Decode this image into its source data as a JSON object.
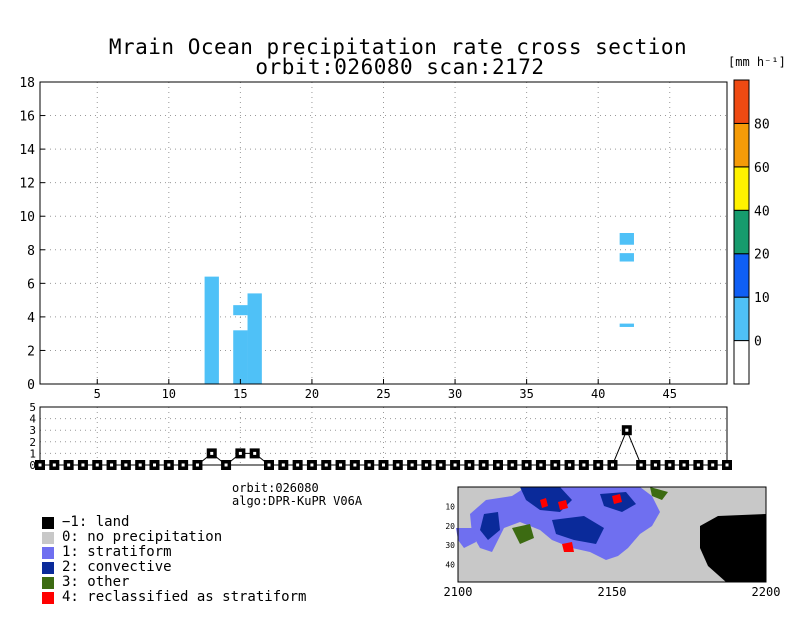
{
  "title": {
    "line1": "Mrain Ocean precipitation rate cross section",
    "line2": "orbit:026080    scan:2172"
  },
  "colorbar": {
    "unit": "[mm h⁻¹]",
    "levels": [
      0,
      10,
      20,
      40,
      60,
      80
    ],
    "colors": [
      "#ffffff",
      "#4fc1f7",
      "#0f5ff5",
      "#169b6d",
      "#fff200",
      "#f59b08",
      "#ef4a12"
    ]
  },
  "info": {
    "orbit": "orbit:026080",
    "algo": "algo:DPR-KuPR V06A"
  },
  "legend": [
    {
      "code": -1,
      "label": "−1: land",
      "color": "#000000"
    },
    {
      "code": 0,
      "label": "0: no precipitation",
      "color": "#c8c8c8"
    },
    {
      "code": 1,
      "label": "1: stratiform",
      "color": "#6f6ff0"
    },
    {
      "code": 2,
      "label": "2: convective",
      "color": "#0a2a9a"
    },
    {
      "code": 3,
      "label": "3: other",
      "color": "#3c6b12"
    },
    {
      "code": 4,
      "label": "4: reclassified as stratiform",
      "color": "#ff0000"
    }
  ],
  "chart_data": [
    {
      "type": "heatmap",
      "name": "precipitation-cross-section",
      "title": "Mrain Ocean precipitation rate cross section",
      "xlabel": "",
      "ylabel": "",
      "xlim": [
        1,
        49
      ],
      "ylim": [
        0,
        18
      ],
      "xticks": [
        5,
        10,
        15,
        20,
        25,
        30,
        35,
        40,
        45
      ],
      "yticks": [
        0,
        2,
        4,
        6,
        8,
        10,
        12,
        14,
        16,
        18
      ],
      "grid": true,
      "cells": [
        {
          "x": 13,
          "y0": 0,
          "y1": 6.4,
          "value": 5
        },
        {
          "x": 15,
          "y0": 0,
          "y1": 3.2,
          "value": 5
        },
        {
          "x": 15,
          "y0": 4.1,
          "y1": 4.7,
          "value": 5
        },
        {
          "x": 16,
          "y0": 0,
          "y1": 5.4,
          "value": 5
        },
        {
          "x": 42,
          "y0": 3.4,
          "y1": 3.6,
          "value": 5
        },
        {
          "x": 42,
          "y0": 7.3,
          "y1": 7.8,
          "value": 5
        },
        {
          "x": 42,
          "y0": 8.3,
          "y1": 9.0,
          "value": 5
        }
      ]
    },
    {
      "type": "line",
      "name": "precip-type-flag",
      "xlim": [
        1,
        49
      ],
      "ylim": [
        0,
        5
      ],
      "yticks": [
        0,
        1,
        2,
        3,
        4,
        5
      ],
      "grid": true,
      "x": [
        1,
        2,
        3,
        4,
        5,
        6,
        7,
        8,
        9,
        10,
        11,
        12,
        13,
        14,
        15,
        16,
        17,
        18,
        19,
        20,
        21,
        22,
        23,
        24,
        25,
        26,
        27,
        28,
        29,
        30,
        31,
        32,
        33,
        34,
        35,
        36,
        37,
        38,
        39,
        40,
        41,
        42,
        43,
        44,
        45,
        46,
        47,
        48,
        49
      ],
      "values": [
        0,
        0,
        0,
        0,
        0,
        0,
        0,
        0,
        0,
        0,
        0,
        0,
        1,
        0,
        1,
        1,
        0,
        0,
        0,
        0,
        0,
        0,
        0,
        0,
        0,
        0,
        0,
        0,
        0,
        0,
        0,
        0,
        0,
        0,
        0,
        0,
        0,
        0,
        0,
        0,
        0,
        3,
        0,
        0,
        0,
        0,
        0,
        0,
        0
      ]
    },
    {
      "type": "heatmap",
      "name": "precip-type-map",
      "xlim": [
        2100,
        2200
      ],
      "xticks": [
        2100,
        2150,
        2200
      ],
      "ylim": [
        0,
        49
      ],
      "yticks": [
        10,
        20,
        30,
        40
      ]
    }
  ]
}
